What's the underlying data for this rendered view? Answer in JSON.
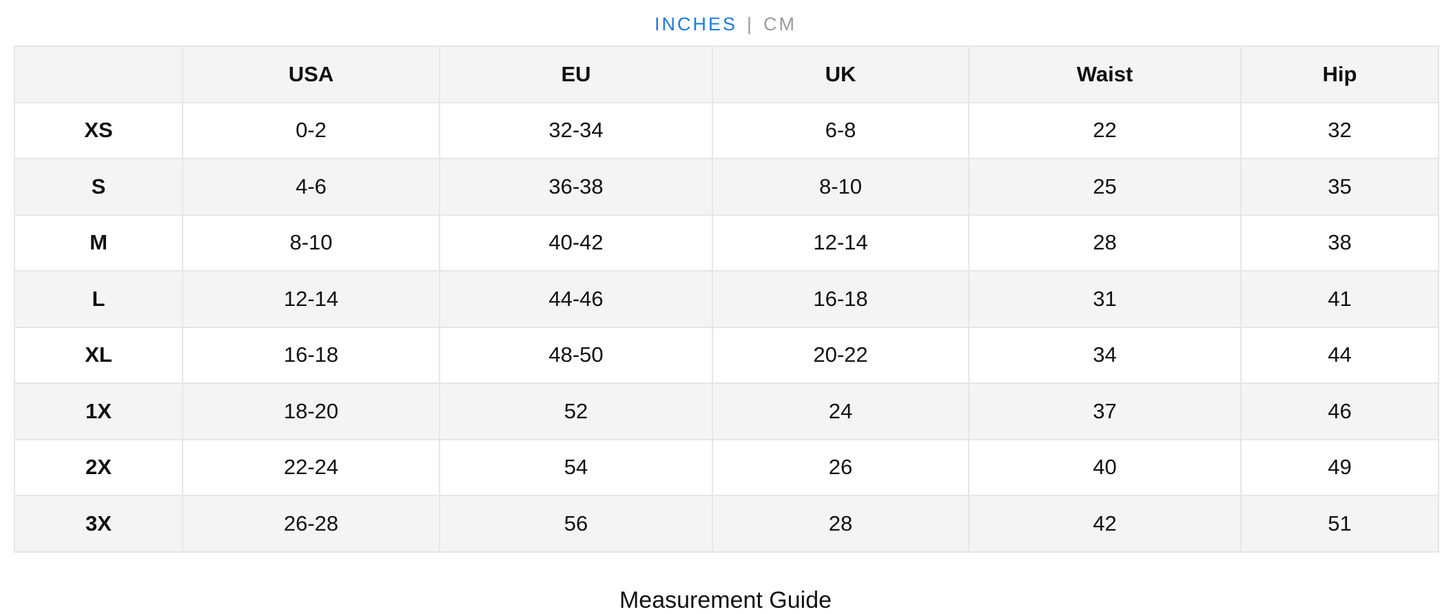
{
  "units": {
    "active": "INCHES",
    "separator": "|",
    "inactive": "CM",
    "active_color": "#1a7be6"
  },
  "table": {
    "headers": [
      "",
      "USA",
      "EU",
      "UK",
      "Waist",
      "Hip"
    ],
    "rows": [
      [
        "XS",
        "0-2",
        "32-34",
        "6-8",
        "22",
        "32"
      ],
      [
        "S",
        "4-6",
        "36-38",
        "8-10",
        "25",
        "35"
      ],
      [
        "M",
        "8-10",
        "40-42",
        "12-14",
        "28",
        "38"
      ],
      [
        "L",
        "12-14",
        "44-46",
        "16-18",
        "31",
        "41"
      ],
      [
        "XL",
        "16-18",
        "48-50",
        "20-22",
        "34",
        "44"
      ],
      [
        "1X",
        "18-20",
        "52",
        "24",
        "37",
        "46"
      ],
      [
        "2X",
        "22-24",
        "54",
        "26",
        "40",
        "49"
      ],
      [
        "3X",
        "26-28",
        "56",
        "28",
        "42",
        "51"
      ]
    ]
  },
  "footer": {
    "guide_title": "Measurement Guide"
  }
}
